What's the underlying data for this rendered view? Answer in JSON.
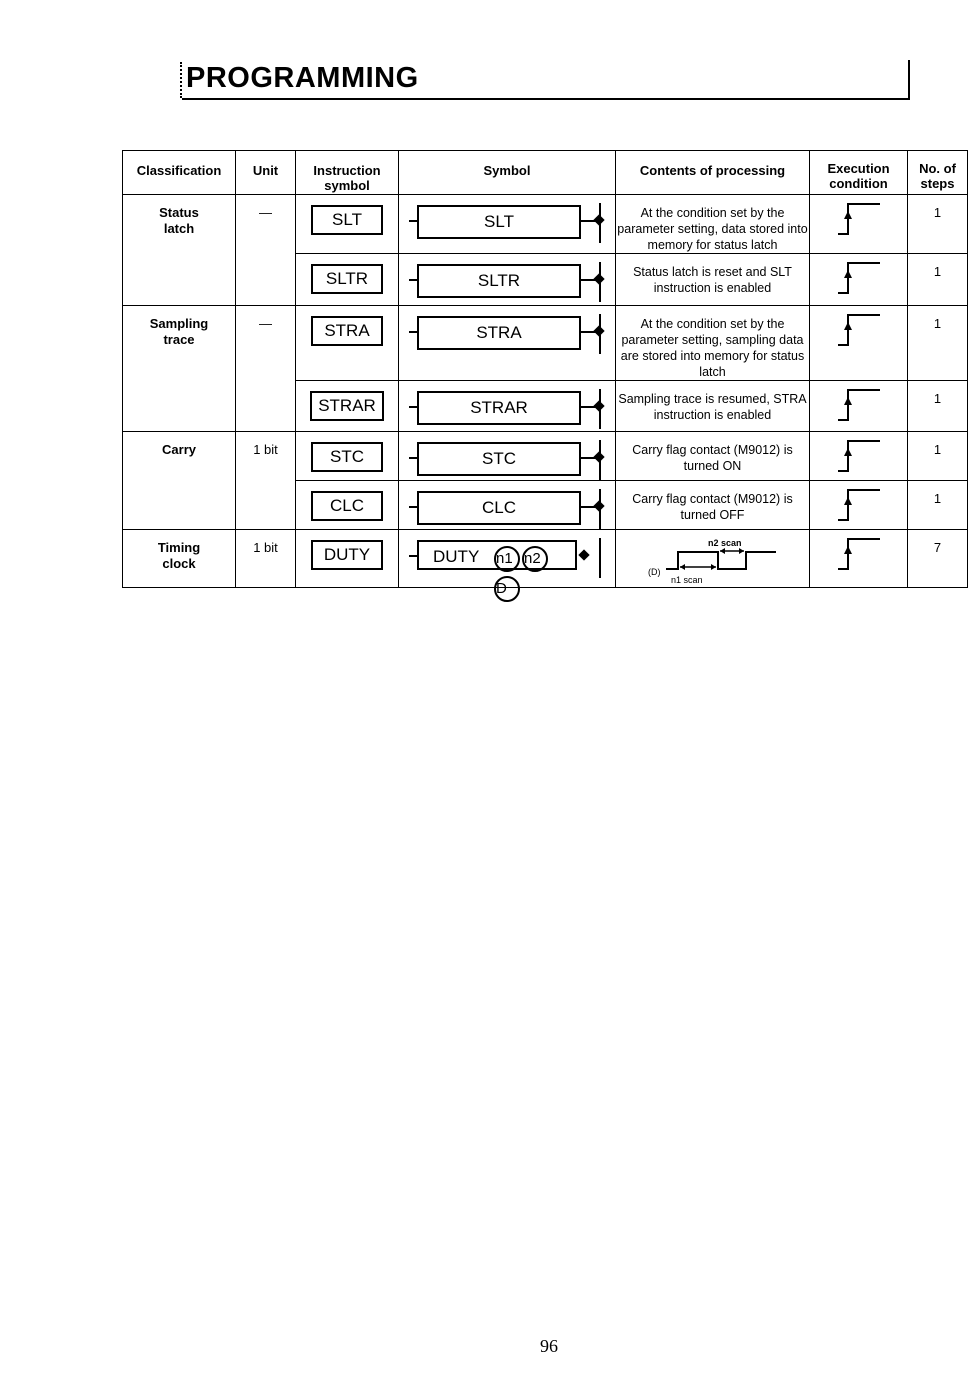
{
  "header": {
    "title": "PROGRAMMING"
  },
  "table": {
    "columns": [
      "Classification",
      "Unit",
      "Instruction symbol",
      "Symbol",
      "Contents of processing",
      "Execution condition",
      "No. of steps"
    ],
    "rows": [
      {
        "classification": "Status latch",
        "unit": "—",
        "instruction": "SLT",
        "content": "At the condition set by the parameter setting, data stored into memory for status latch",
        "steps": "1"
      },
      {
        "instruction": "SLTR",
        "content": "Status latch is reset and SLT instruction is enabled",
        "steps": "1"
      },
      {
        "classification": "Sampling trace",
        "unit": "—",
        "instruction": "STRA",
        "content": "At the condition set by the parameter setting, sampling data are stored into memory for status latch",
        "steps": "1"
      },
      {
        "instruction": "STRAR",
        "content": "Sampling trace is resumed, STRA instruction is enabled",
        "steps": "1"
      },
      {
        "classification": "Carry",
        "unit": "1 bit",
        "instruction": "STC",
        "content": "Carry flag contact (M9012) is turned ON",
        "steps": "1"
      },
      {
        "instruction": "CLC",
        "content": "Carry flag contact (M9012) is turned OFF",
        "steps": "1"
      },
      {
        "classification": "Timing clock",
        "unit": "1 bit",
        "instruction": "DUTY",
        "operands": [
          "n1",
          "n2",
          "D"
        ],
        "timing": {
          "n2": "n2 scan",
          "n1": "n1 scan",
          "d": "(D)"
        },
        "steps": "7"
      }
    ]
  },
  "execution_condition_icon": "rising-edge-icon",
  "footer": {
    "page_number": "96"
  }
}
